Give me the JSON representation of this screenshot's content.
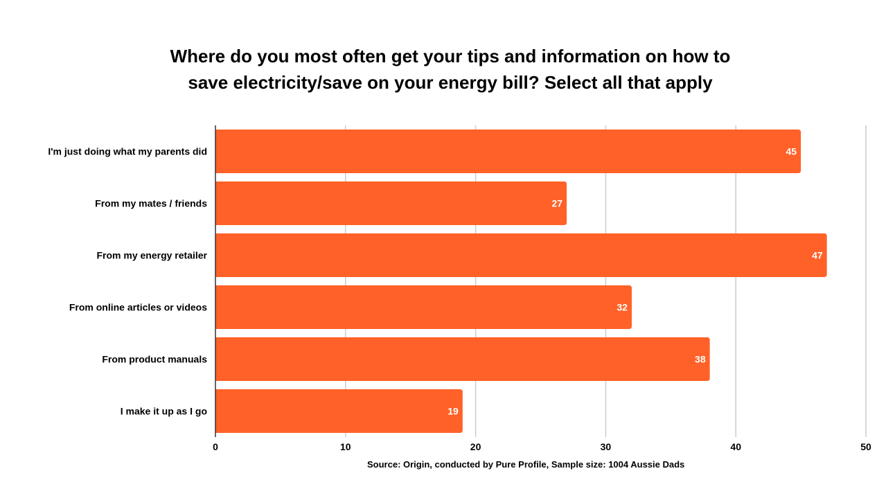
{
  "title_lines": [
    "Where do you most often get your tips and information on how to",
    "save electricity/save on your energy bill? Select all that apply"
  ],
  "source_note": "Source: Origin, conducted by Pure Profile, Sample size: 1004 Aussie Dads",
  "colors": {
    "bar": "#FF6128",
    "grid": "#CCCCCC",
    "label_text": "#FFFFFF"
  },
  "chart_data": {
    "type": "bar",
    "orientation": "horizontal",
    "title": "Where do you most often get your tips and information on how to save electricity/save on your energy bill? Select all that apply",
    "categories": [
      "I'm just doing what my parents did",
      "From my mates / friends",
      "From my energy retailer",
      "From online articles or videos",
      "From product manuals",
      "I make it up as I go"
    ],
    "values": [
      45,
      27,
      47,
      32,
      38,
      19
    ],
    "xlim": [
      0,
      50
    ],
    "x_ticks": [
      0,
      10,
      20,
      30,
      40,
      50
    ],
    "xlabel": "",
    "ylabel": "",
    "grid": true,
    "data_labels": true
  }
}
